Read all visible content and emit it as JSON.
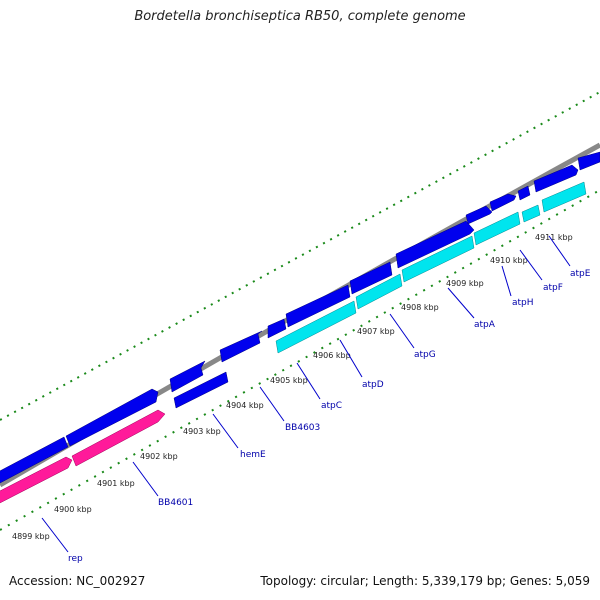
{
  "title": "Bordetella bronchiseptica RB50, complete genome",
  "footer": {
    "accession": "Accession: NC_002927",
    "summary": "Topology: circular; Length: 5,339,179 bp; Genes: 5,059"
  },
  "colors": {
    "forward_gene": "#0000ee",
    "reverse_gene": "#1010ff",
    "rrna_or_pink": "#ff1a9a",
    "atp_operon": "#00e5ee",
    "backbone": "#888888",
    "tick": "#1a8a1a",
    "label": "#0000aa"
  },
  "ticks": [
    "4899 kbp",
    "4900 kbp",
    "4901 kbp",
    "4902 kbp",
    "4903 kbp",
    "4904 kbp",
    "4905 kbp",
    "4906 kbp",
    "4907 kbp",
    "4908 kbp",
    "4909 kbp",
    "4910 kbp",
    "4911 kbp"
  ],
  "genes": [
    "rep",
    "BB4601",
    "hemE",
    "BB4603",
    "atpC",
    "atpD",
    "atpG",
    "atpA",
    "atpH",
    "atpF",
    "atpE"
  ]
}
